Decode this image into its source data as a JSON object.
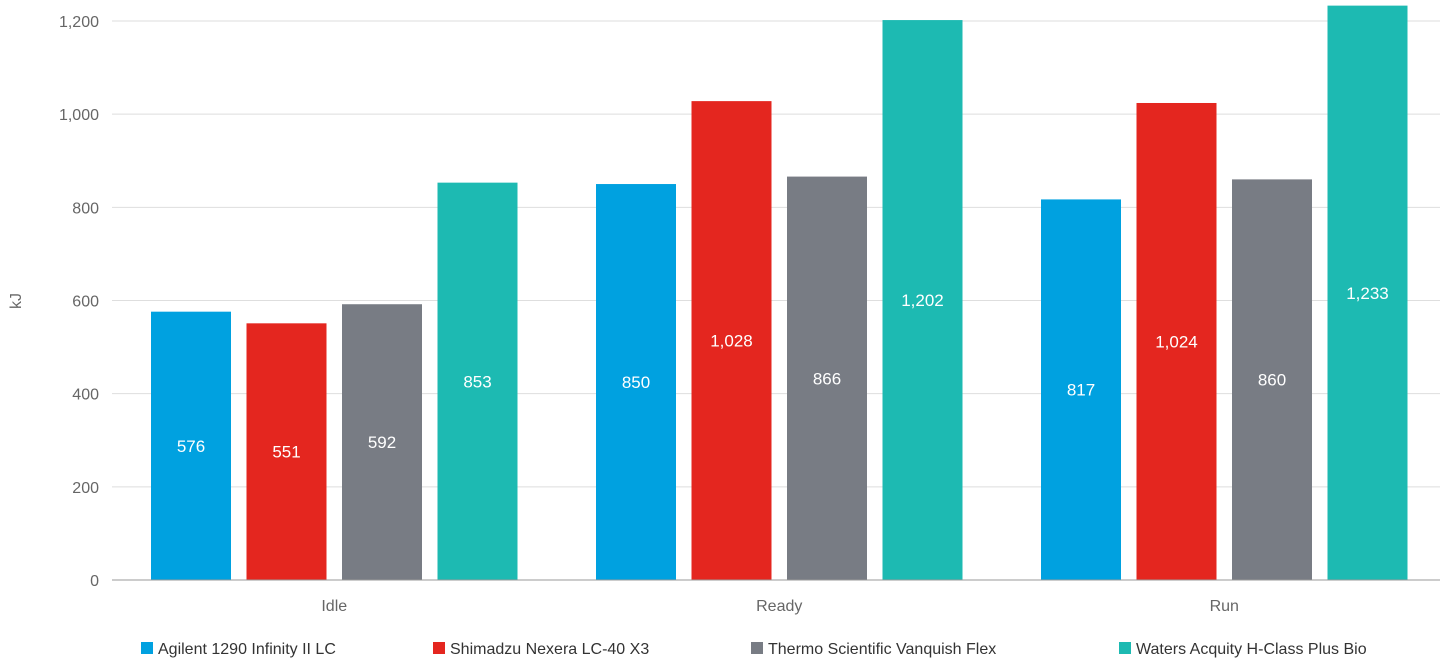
{
  "chart_data": {
    "type": "bar",
    "categories": [
      "Idle",
      "Ready",
      "Run"
    ],
    "series": [
      {
        "name": "Agilent 1290 Infinity II LC",
        "color": "#00a1e0",
        "values": [
          576,
          850,
          817
        ]
      },
      {
        "name": "Shimadzu Nexera LC-40 X3",
        "color": "#e4261f",
        "values": [
          551,
          1028,
          1024
        ]
      },
      {
        "name": "Thermo Scientific Vanquish Flex",
        "color": "#787c84",
        "values": [
          592,
          866,
          860
        ]
      },
      {
        "name": "Waters Acquity H-Class Plus Bio",
        "color": "#1dbab2",
        "values": [
          853,
          1202,
          1233
        ]
      }
    ],
    "value_labels": [
      [
        "576",
        "850",
        "817"
      ],
      [
        "551",
        "1,028",
        "1,024"
      ],
      [
        "592",
        "866",
        "860"
      ],
      [
        "853",
        "1,202",
        "1,233"
      ]
    ],
    "ylabel": "kJ",
    "ylim": [
      0,
      1200
    ],
    "yticks": [
      0,
      200,
      400,
      600,
      800,
      1000,
      1200
    ],
    "ytick_labels": [
      "0",
      "200",
      "400",
      "600",
      "800",
      "1,000",
      "1,200"
    ],
    "grid": true,
    "legend_position": "bottom"
  }
}
